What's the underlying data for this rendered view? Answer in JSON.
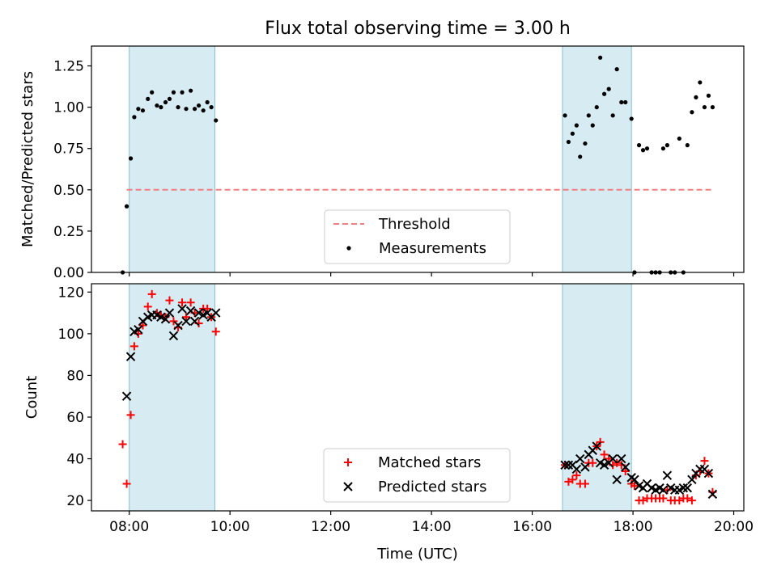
{
  "chart_data": [
    {
      "type": "scatter",
      "title": "Flux total observing time = 3.00 h",
      "xlabel": "",
      "ylabel": "Matched/Predicted stars",
      "xlim": [
        7.25,
        20.2
      ],
      "ylim": [
        0,
        1.37
      ],
      "yticks": [
        "0.00",
        "0.25",
        "0.50",
        "0.75",
        "1.00",
        "1.25"
      ],
      "ytick_values": [
        0,
        0.25,
        0.5,
        0.75,
        1.0,
        1.25
      ],
      "grid": false,
      "legend_placement": "bottom-center",
      "shaded_intervals": [
        [
          8.0,
          9.7
        ],
        [
          16.6,
          17.97
        ]
      ],
      "series": [
        {
          "name": "Threshold",
          "kind": "dashed-line",
          "color": "#f08080",
          "x": [
            7.95,
            19.6
          ],
          "y": [
            0.5,
            0.5
          ]
        },
        {
          "name": "Measurements",
          "kind": "dot",
          "color": "#000000",
          "x": [
            7.87,
            7.95,
            8.03,
            8.1,
            8.18,
            8.27,
            8.37,
            8.45,
            8.55,
            8.63,
            8.72,
            8.8,
            8.88,
            8.97,
            9.05,
            9.13,
            9.22,
            9.3,
            9.38,
            9.47,
            9.55,
            9.63,
            9.72,
            16.65,
            16.72,
            16.8,
            16.88,
            16.95,
            17.05,
            17.12,
            17.2,
            17.28,
            17.35,
            17.43,
            17.52,
            17.6,
            17.68,
            17.77,
            17.85,
            17.97,
            18.03,
            18.12,
            18.2,
            18.28,
            18.37,
            18.45,
            18.53,
            18.6,
            18.68,
            18.75,
            18.83,
            18.92,
            19.0,
            19.08,
            19.17,
            19.25,
            19.33,
            19.42,
            19.5,
            19.58
          ],
          "y": [
            0.0,
            0.4,
            0.69,
            0.94,
            0.99,
            0.98,
            1.05,
            1.09,
            1.01,
            1.0,
            1.03,
            1.05,
            1.09,
            1.0,
            1.09,
            0.99,
            1.1,
            0.99,
            1.01,
            0.98,
            1.03,
            1.0,
            0.92,
            0.95,
            0.79,
            0.84,
            0.89,
            0.7,
            0.78,
            0.95,
            0.89,
            1.0,
            1.3,
            1.08,
            1.11,
            0.95,
            1.23,
            1.03,
            1.03,
            0.93,
            0.0,
            0.77,
            0.74,
            0.75,
            0.0,
            0.0,
            0.0,
            0.75,
            0.77,
            0.0,
            0.0,
            0.81,
            0.0,
            0.77,
            0.97,
            1.06,
            1.15,
            1.0,
            1.07,
            1.0
          ]
        }
      ]
    },
    {
      "type": "scatter",
      "title": "",
      "xlabel": "Time (UTC)",
      "ylabel": "Count",
      "xlim": [
        7.25,
        20.2
      ],
      "ylim": [
        15,
        124
      ],
      "xticks": [
        "08:00",
        "10:00",
        "12:00",
        "14:00",
        "16:00",
        "18:00",
        "20:00"
      ],
      "xtick_values": [
        8,
        10,
        12,
        14,
        16,
        18,
        20
      ],
      "yticks": [
        "20",
        "40",
        "60",
        "80",
        "100",
        "120"
      ],
      "ytick_values": [
        20,
        40,
        60,
        80,
        100,
        120
      ],
      "grid": false,
      "legend_placement": "bottom-center",
      "shaded_intervals": [
        [
          8.0,
          9.7
        ],
        [
          16.6,
          17.97
        ]
      ],
      "series": [
        {
          "name": "Matched stars",
          "kind": "plus",
          "color": "#ff0000",
          "x": [
            7.87,
            7.95,
            8.03,
            8.1,
            8.18,
            8.27,
            8.37,
            8.45,
            8.55,
            8.63,
            8.72,
            8.8,
            8.88,
            8.97,
            9.05,
            9.13,
            9.22,
            9.3,
            9.38,
            9.47,
            9.55,
            9.63,
            9.72,
            16.65,
            16.72,
            16.8,
            16.88,
            16.95,
            17.05,
            17.12,
            17.2,
            17.28,
            17.35,
            17.43,
            17.52,
            17.6,
            17.68,
            17.77,
            17.85,
            17.97,
            18.03,
            18.12,
            18.2,
            18.28,
            18.37,
            18.45,
            18.53,
            18.6,
            18.68,
            18.75,
            18.83,
            18.92,
            19.0,
            19.08,
            19.17,
            19.25,
            19.33,
            19.42,
            19.5,
            19.58
          ],
          "y": [
            47,
            28,
            61,
            94,
            100,
            104,
            113,
            119,
            110,
            109,
            108,
            116,
            106,
            103,
            115,
            108,
            115,
            110,
            105,
            112,
            112,
            108,
            101,
            37,
            29,
            30,
            32,
            28,
            28,
            38,
            38,
            46,
            48,
            42,
            40,
            37,
            38,
            37,
            34,
            28,
            27,
            20,
            20,
            21,
            21,
            21,
            21,
            21,
            25,
            20,
            20,
            20,
            21,
            21,
            20,
            32,
            34,
            39,
            33,
            24
          ]
        },
        {
          "name": "Predicted stars",
          "kind": "x",
          "color": "#000000",
          "x": [
            7.95,
            8.03,
            8.1,
            8.18,
            8.27,
            8.37,
            8.45,
            8.55,
            8.63,
            8.72,
            8.8,
            8.88,
            8.97,
            9.05,
            9.13,
            9.22,
            9.3,
            9.38,
            9.47,
            9.55,
            9.63,
            9.72,
            16.65,
            16.72,
            16.8,
            16.88,
            16.95,
            17.05,
            17.12,
            17.2,
            17.28,
            17.35,
            17.43,
            17.52,
            17.6,
            17.68,
            17.77,
            17.85,
            17.97,
            18.03,
            18.12,
            18.2,
            18.28,
            18.37,
            18.45,
            18.53,
            18.6,
            18.68,
            18.75,
            18.83,
            18.92,
            19.0,
            19.08,
            19.17,
            19.25,
            19.33,
            19.42,
            19.5,
            19.58
          ],
          "y": [
            70,
            89,
            101,
            102,
            106,
            108,
            109,
            109,
            108,
            107,
            110,
            99,
            104,
            112,
            106,
            111,
            106,
            110,
            109,
            110,
            108,
            110,
            37,
            37,
            37,
            35,
            40,
            36,
            42,
            44,
            46,
            38,
            37,
            38,
            40,
            30,
            40,
            36,
            31,
            30,
            27,
            26,
            28,
            26,
            25,
            26,
            25,
            32,
            26,
            25,
            25,
            26,
            26,
            30,
            33,
            35,
            35,
            33,
            23
          ]
        }
      ]
    }
  ]
}
